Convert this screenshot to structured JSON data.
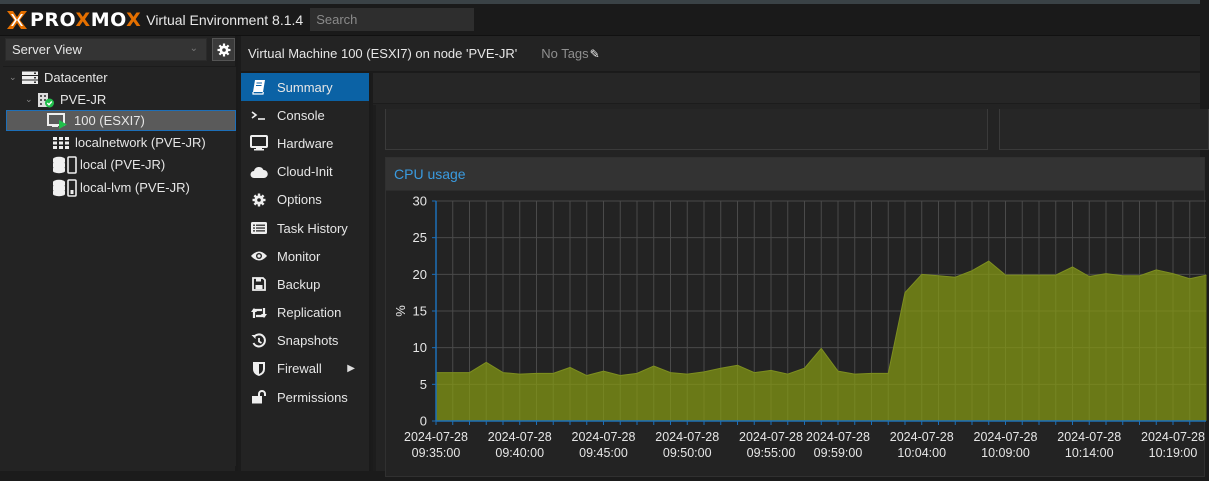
{
  "app": {
    "brand": "PROXMOX",
    "product": "Virtual Environment 8.1.4",
    "search_placeholder": "Search"
  },
  "left_panel": {
    "view_select": "Server View",
    "gear_icon": "gear-icon",
    "tree": [
      {
        "label": "Datacenter",
        "icon": "datacenter-icon",
        "level": 0,
        "expanded": true
      },
      {
        "label": "PVE-JR",
        "icon": "node-online-icon",
        "level": 1,
        "expanded": true
      },
      {
        "label": "100 (ESXI7)",
        "icon": "vm-running-icon",
        "level": 2,
        "selected": true
      },
      {
        "label": "localnetwork (PVE-JR)",
        "icon": "sdn-grid-icon",
        "level": 2
      },
      {
        "label": "local (PVE-JR)",
        "icon": "storage-icon",
        "level": 2
      },
      {
        "label": "local-lvm (PVE-JR)",
        "icon": "storage-icon",
        "level": 2
      }
    ]
  },
  "header": {
    "title": "Virtual Machine 100 (ESXI7) on node 'PVE-JR'",
    "tags": "No Tags",
    "edit_icon": "pencil-icon"
  },
  "nav": {
    "items": [
      {
        "label": "Summary",
        "icon": "book-icon",
        "active": true
      },
      {
        "label": "Console",
        "icon": "terminal-icon"
      },
      {
        "label": "Hardware",
        "icon": "desktop-icon"
      },
      {
        "label": "Cloud-Init",
        "icon": "cloud-icon"
      },
      {
        "label": "Options",
        "icon": "gear-icon"
      },
      {
        "label": "Task History",
        "icon": "list-icon"
      },
      {
        "label": "Monitor",
        "icon": "eye-icon"
      },
      {
        "label": "Backup",
        "icon": "floppy-icon"
      },
      {
        "label": "Replication",
        "icon": "retweet-icon"
      },
      {
        "label": "Snapshots",
        "icon": "history-icon"
      },
      {
        "label": "Firewall",
        "icon": "shield-icon",
        "submenu": true
      },
      {
        "label": "Permissions",
        "icon": "unlock-icon"
      }
    ]
  },
  "cpu_panel": {
    "title": "CPU usage"
  },
  "colors": {
    "accent": "#0b62a5",
    "title_blue": "#3a9be0",
    "area_fill": "#6b7a1b",
    "area_line": "#7d8e20",
    "brand_orange": "#e57000",
    "status_green": "#21bf4b"
  },
  "chart_data": {
    "type": "area",
    "title": "CPU usage",
    "xlabel": "",
    "ylabel": "%",
    "ylim": [
      0,
      30
    ],
    "yticks": [
      0,
      5,
      10,
      15,
      20,
      25,
      30
    ],
    "grid": true,
    "legend": "none",
    "x_tick_labels": [
      [
        "2024-07-28",
        "09:35:00"
      ],
      [
        "2024-07-28",
        "09:40:00"
      ],
      [
        "2024-07-28",
        "09:45:00"
      ],
      [
        "2024-07-28",
        "09:50:00"
      ],
      [
        "2024-07-28",
        "09:55:00"
      ],
      [
        "2024-07-28",
        "09:59:00"
      ],
      [
        "2024-07-28",
        "10:04:00"
      ],
      [
        "2024-07-28",
        "10:09:00"
      ],
      [
        "2024-07-28",
        "10:14:00"
      ],
      [
        "2024-07-28",
        "10:19:00"
      ]
    ],
    "x": [
      "09:35",
      "09:36",
      "09:37",
      "09:38",
      "09:39",
      "09:40",
      "09:41",
      "09:42",
      "09:43",
      "09:44",
      "09:45",
      "09:46",
      "09:47",
      "09:48",
      "09:49",
      "09:50",
      "09:51",
      "09:52",
      "09:53",
      "09:54",
      "09:55",
      "09:56",
      "09:57",
      "09:58",
      "09:59",
      "10:00",
      "10:01",
      "10:02",
      "10:03",
      "10:04",
      "10:05",
      "10:06",
      "10:07",
      "10:08",
      "10:09",
      "10:10",
      "10:11",
      "10:12",
      "10:13",
      "10:14",
      "10:15",
      "10:16",
      "10:17",
      "10:18",
      "10:19",
      "10:20",
      "10:21"
    ],
    "series": [
      {
        "name": "CPU usage",
        "values": [
          6.6,
          6.6,
          6.6,
          8.0,
          6.6,
          6.4,
          6.5,
          6.5,
          7.3,
          6.2,
          6.8,
          6.2,
          6.5,
          7.5,
          6.6,
          6.4,
          6.7,
          7.2,
          7.6,
          6.6,
          6.9,
          6.4,
          7.2,
          9.9,
          6.8,
          6.4,
          6.5,
          6.5,
          17.5,
          20.0,
          19.8,
          19.6,
          20.5,
          21.8,
          19.9,
          19.9,
          19.9,
          19.9,
          21.0,
          19.7,
          20.1,
          19.8,
          19.8,
          20.6,
          20.1,
          19.4,
          19.9
        ]
      }
    ]
  }
}
